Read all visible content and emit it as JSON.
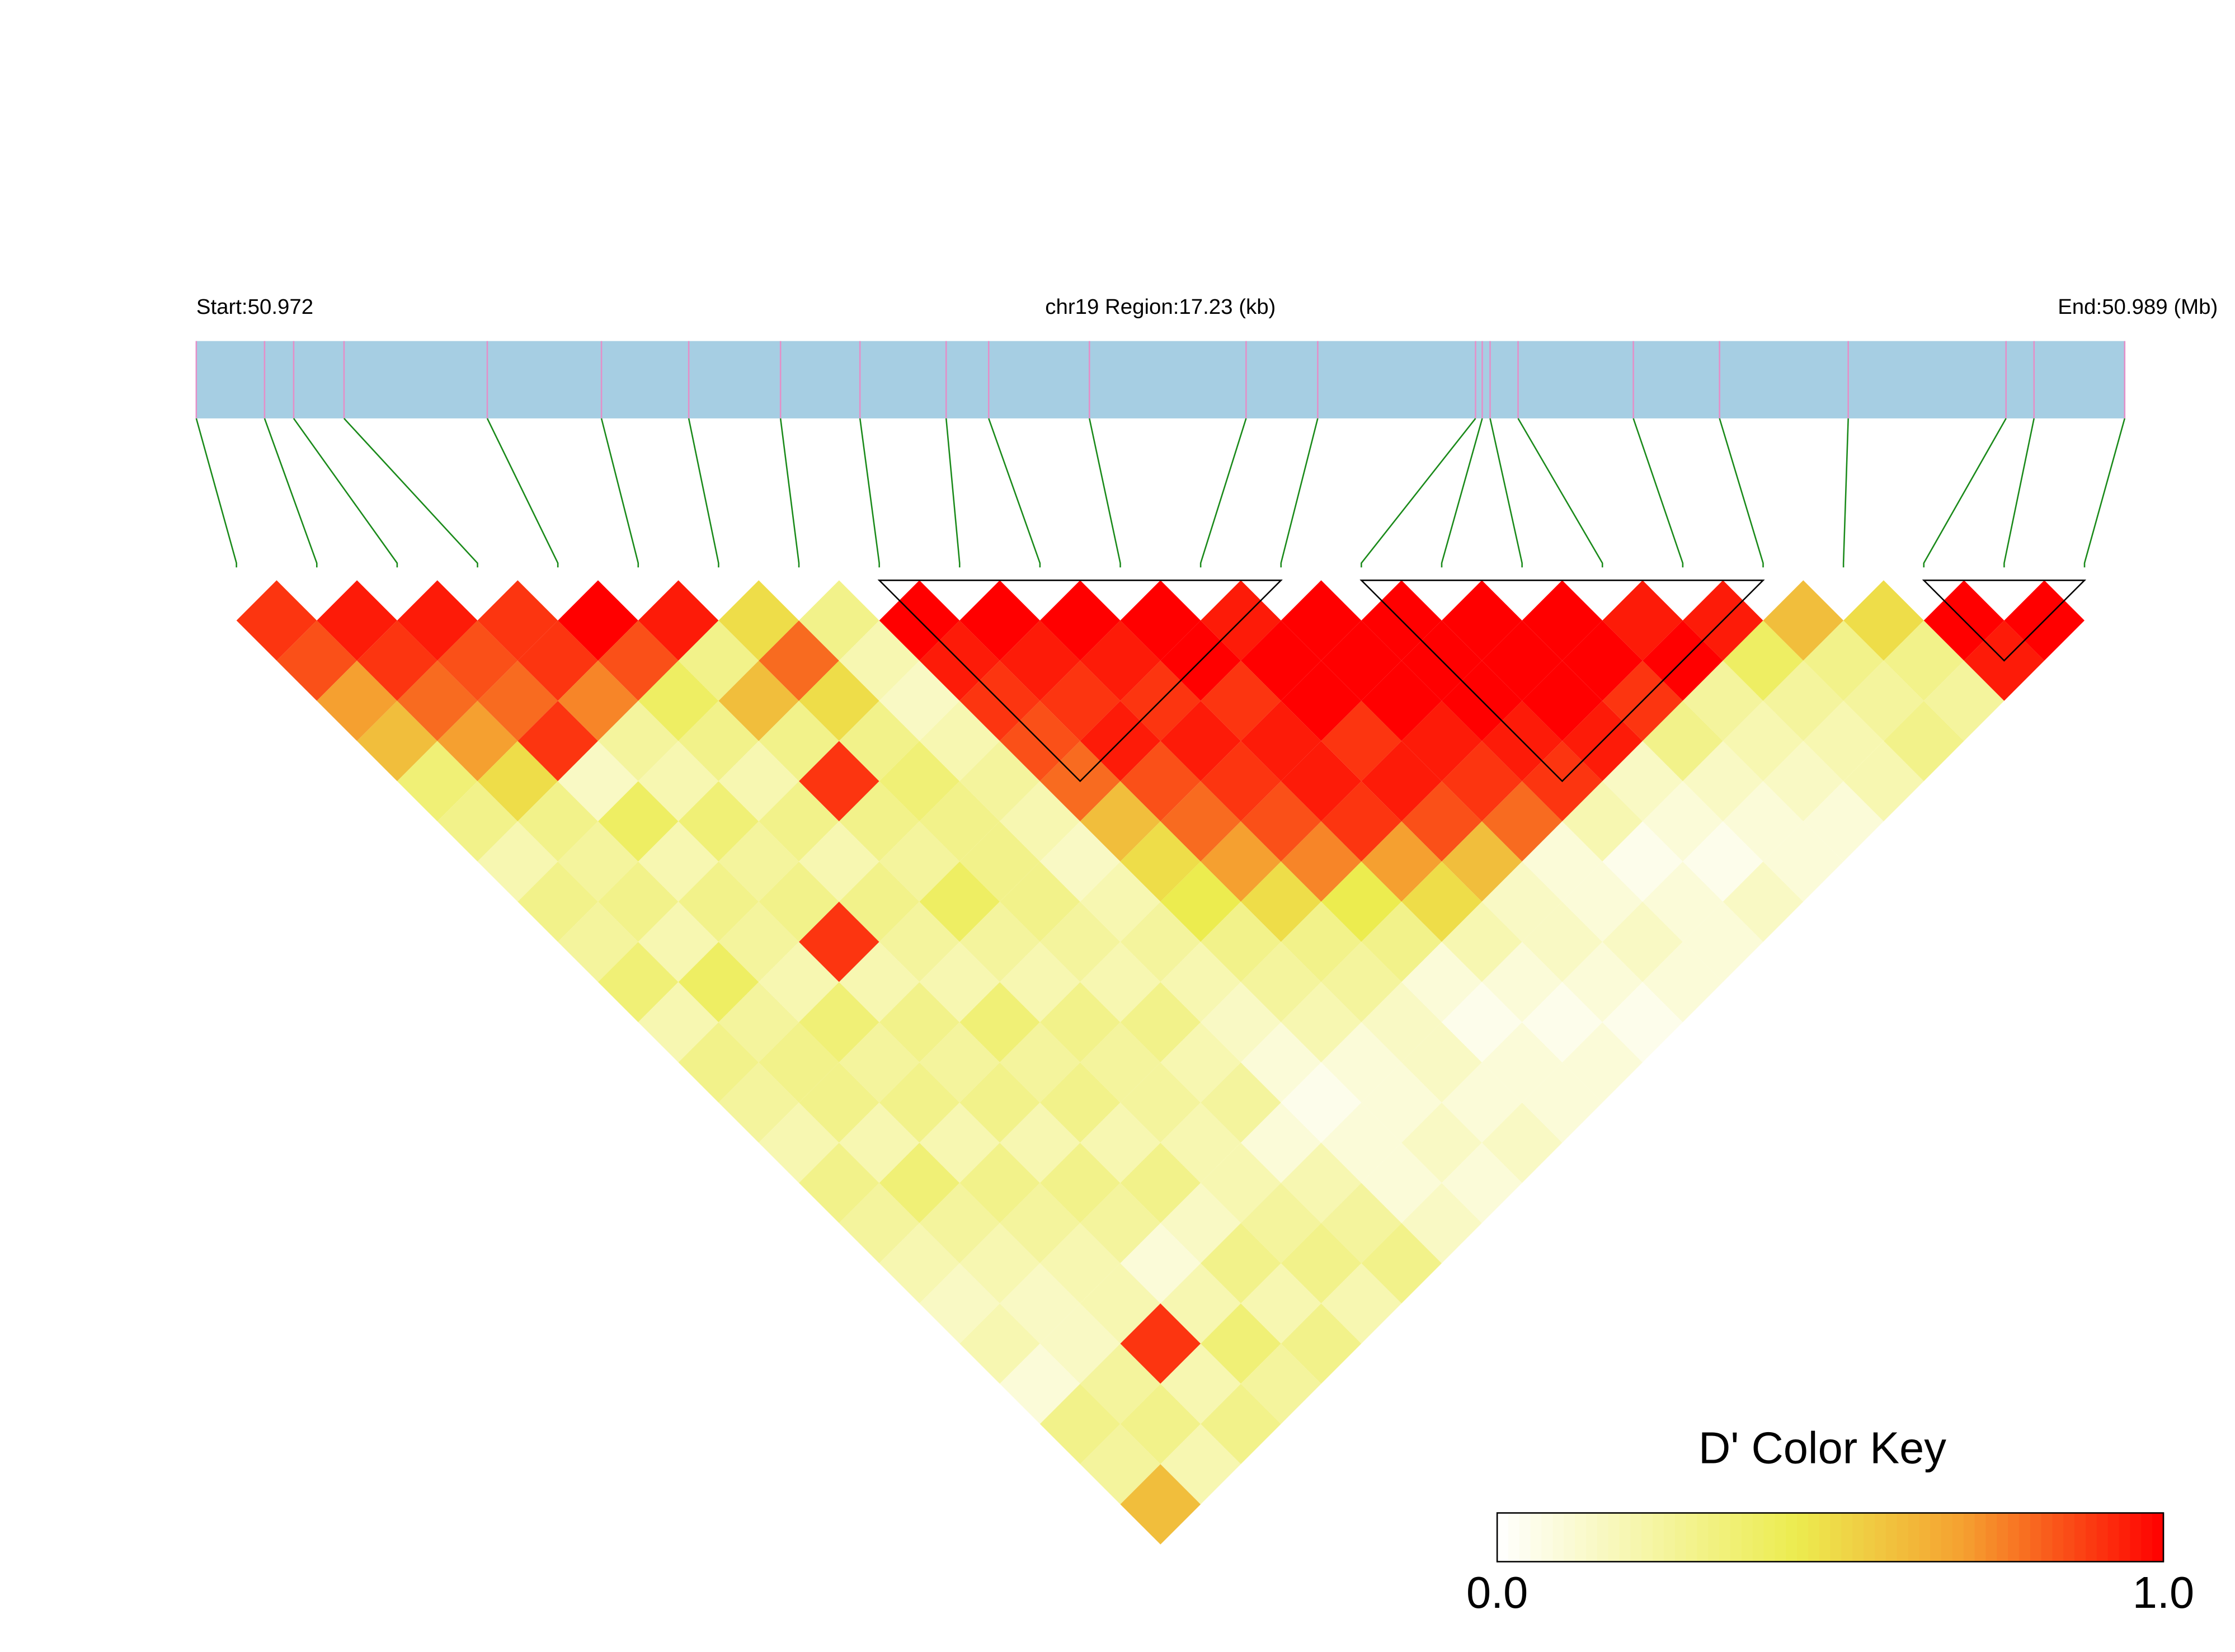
{
  "chart_data": {
    "type": "ld-heatmap",
    "start_label": "Start:50.972",
    "region_label": "chr19 Region:17.23 (kb)",
    "end_label": "End:50.989 (Mb)",
    "xlim": [
      0,
      17.23
    ],
    "positions_kb": [
      0,
      0.61,
      0.87,
      1.32,
      2.6,
      3.62,
      4.4,
      5.22,
      5.93,
      6.7,
      7.08,
      7.98,
      9.38,
      10.02,
      11.43,
      11.49,
      11.56,
      11.81,
      12.84,
      13.61,
      14.76,
      16.17,
      16.42,
      17.23
    ],
    "dprime": [
      [
        0.9
      ],
      [
        0.85,
        0.95
      ],
      [
        0.7,
        0.9,
        0.95
      ],
      [
        0.6,
        0.8,
        0.85,
        0.9
      ],
      [
        0.35,
        0.7,
        0.8,
        0.9,
        1
      ],
      [
        0.3,
        0.5,
        0.9,
        0.75,
        0.85,
        0.95
      ],
      [
        0.2,
        0.3,
        0.15,
        0.25,
        0.4,
        0.3,
        0.5
      ],
      [
        0.3,
        0.25,
        0.4,
        0.2,
        0.3,
        0.6,
        0.8,
        0.3
      ],
      [
        0.25,
        0.3,
        0.2,
        0.35,
        0.2,
        0.3,
        0.5,
        0.2,
        1
      ],
      [
        0.35,
        0.2,
        0.3,
        0.25,
        0.3,
        0.9,
        0.3,
        0.15,
        0.95,
        1
      ],
      [
        0.2,
        0.4,
        0.25,
        0.3,
        0.2,
        0.3,
        0.35,
        0.2,
        0.9,
        0.95,
        1
      ],
      [
        0.3,
        0.25,
        0.2,
        0.9,
        0.3,
        0.25,
        0.3,
        0.25,
        0.85,
        0.9,
        0.95,
        1
      ],
      [
        0.25,
        0.3,
        0.35,
        0.2,
        0.25,
        0.4,
        0.3,
        0.2,
        0.8,
        0.95,
        0.9,
        1,
        0.95
      ],
      [
        0.2,
        0.3,
        0.25,
        0.3,
        0.2,
        0.25,
        0.3,
        0.15,
        0.6,
        0.85,
        0.95,
        0.9,
        1,
        1
      ],
      [
        0.3,
        0.2,
        0.3,
        0.25,
        0.35,
        0.2,
        0.25,
        0.2,
        0.5,
        0.8,
        0.9,
        0.95,
        1,
        1,
        1
      ],
      [
        0.25,
        0.35,
        0.2,
        0.3,
        0.25,
        0.3,
        0.2,
        0.25,
        0.45,
        0.7,
        0.85,
        0.95,
        0.9,
        1,
        1,
        1
      ],
      [
        0.2,
        0.25,
        0.3,
        0.2,
        0.3,
        0.25,
        0.3,
        0.2,
        0.3,
        0.5,
        0.75,
        0.9,
        0.95,
        0.95,
        1,
        1,
        1
      ],
      [
        0.15,
        0.2,
        0.25,
        0.3,
        0.2,
        0.25,
        0.2,
        0.15,
        0.25,
        0.3,
        0.45,
        0.7,
        0.85,
        0.9,
        0.95,
        1,
        1,
        0.95
      ],
      [
        0.2,
        0.15,
        0.2,
        0.25,
        0.3,
        0.2,
        0.25,
        0.1,
        0.2,
        0.25,
        0.3,
        0.5,
        0.6,
        0.8,
        0.9,
        0.95,
        0.9,
        1,
        0.95
      ],
      [
        0.1,
        0.15,
        0.2,
        0.1,
        0.15,
        0.2,
        0.1,
        0.05,
        0.1,
        0.15,
        0.1,
        0.2,
        0.15,
        0.1,
        0.2,
        0.15,
        0.3,
        0.25,
        0.4,
        0.6
      ],
      [
        0.3,
        0.25,
        0.9,
        0.2,
        0.3,
        0.25,
        0.2,
        0.1,
        0.1,
        0.15,
        0.05,
        0.1,
        0.15,
        0.1,
        0.05,
        0.1,
        0.15,
        0.2,
        0.25,
        0.3,
        0.5
      ],
      [
        0.25,
        0.3,
        0.2,
        0.35,
        0.2,
        0.3,
        0.25,
        0.1,
        0.15,
        0.1,
        0.1,
        0.05,
        0.1,
        0.15,
        0.1,
        0.05,
        0.1,
        0.15,
        0.2,
        0.25,
        0.3,
        1
      ],
      [
        0.6,
        0.2,
        0.3,
        0.25,
        0.3,
        0.2,
        0.3,
        0.15,
        0.1,
        0.15,
        0.1,
        0.1,
        0.05,
        0.1,
        0.1,
        0.15,
        0.1,
        0.1,
        0.2,
        0.3,
        0.25,
        0.95,
        1
      ]
    ],
    "blocks": [
      [
        8,
        13
      ],
      [
        14,
        19
      ],
      [
        21,
        23
      ]
    ],
    "bar_color": "#a6cee3",
    "snp_color": "#e48fc8",
    "link_color": "#1a8a1a",
    "colormap": [
      "#ffffff",
      "#ecec4f",
      "#f5a030",
      "#ff0000"
    ],
    "key_title": "D' Color Key",
    "key_lim": [
      0,
      1
    ],
    "key_ticks": [
      {
        "value": 0,
        "label": "0.0"
      },
      {
        "value": 1,
        "label": "1.0"
      }
    ]
  }
}
